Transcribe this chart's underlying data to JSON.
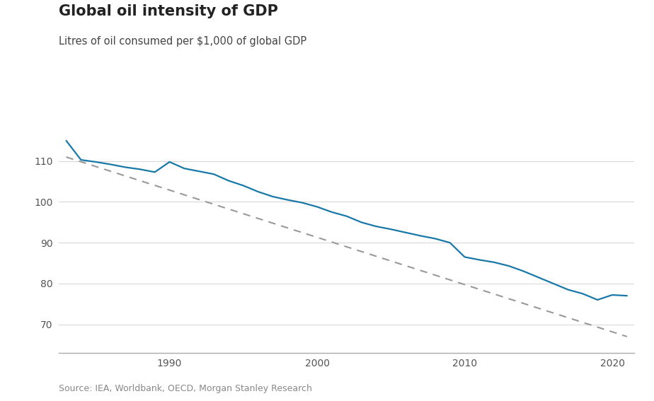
{
  "title": "Global oil intensity of GDP",
  "subtitle": "Litres of oil consumed per $1,000 of global GDP",
  "source": "Source: IEA, Worldbank, OECD, Morgan Stanley Research",
  "line_color": "#1878a8",
  "trend_color": "#999999",
  "background_color": "#ffffff",
  "years": [
    1983,
    1984,
    1985,
    1986,
    1987,
    1988,
    1989,
    1990,
    1991,
    1992,
    1993,
    1994,
    1995,
    1996,
    1997,
    1998,
    1999,
    2000,
    2001,
    2002,
    2003,
    2004,
    2005,
    2006,
    2007,
    2008,
    2009,
    2010,
    2011,
    2012,
    2013,
    2014,
    2015,
    2016,
    2017,
    2018,
    2019,
    2020,
    2021
  ],
  "values": [
    115.0,
    110.3,
    109.8,
    109.2,
    108.5,
    108.0,
    107.3,
    109.8,
    108.2,
    107.5,
    106.8,
    105.2,
    104.0,
    102.5,
    101.3,
    100.5,
    99.8,
    98.8,
    97.5,
    96.5,
    95.0,
    94.0,
    93.3,
    92.5,
    91.7,
    91.0,
    90.0,
    86.5,
    85.8,
    85.2,
    84.3,
    83.0,
    81.5,
    80.0,
    78.5,
    77.5,
    76.0,
    77.2,
    77.0
  ],
  "trend_x": [
    1983,
    2021
  ],
  "trend_y": [
    111.0,
    67.0
  ],
  "ylim": [
    63,
    120
  ],
  "yticks": [
    70,
    80,
    90,
    100,
    110
  ],
  "xlim": [
    1982.5,
    2021.5
  ],
  "xticks": [
    1990,
    2000,
    2010,
    2020
  ],
  "title_fontsize": 15,
  "subtitle_fontsize": 10.5,
  "tick_fontsize": 10,
  "source_fontsize": 9
}
